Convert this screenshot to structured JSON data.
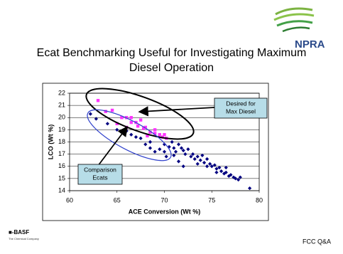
{
  "header": {
    "logo": "NPRA"
  },
  "chart_data": {
    "type": "scatter",
    "title": "Ecat Benchmarking Useful for Investigating Maximum Diesel Operation",
    "x_label": "ACE Conversion (Wt %)",
    "y_label": "LCO (Wt %)",
    "xlim": [
      60,
      80
    ],
    "xticks": [
      60,
      65,
      70,
      75,
      80
    ],
    "ylim": [
      14,
      22
    ],
    "yticks": [
      14,
      15,
      16,
      17,
      18,
      19,
      20,
      21,
      22
    ],
    "grid": true,
    "series": [
      {
        "color": "#ff33ff",
        "marker": "square",
        "x": [
          63.0,
          63.8,
          64.5,
          65.5,
          66.0,
          66.5,
          67.0,
          67.5,
          67.2,
          68.0,
          68.5,
          69.0,
          69.5,
          70.0,
          69.0,
          66.5,
          68.2,
          70.2,
          69.8,
          67.8,
          66.0,
          65.0
        ],
        "values": [
          21.4,
          20.5,
          20.6,
          20.0,
          20.0,
          20.0,
          19.6,
          19.8,
          19.3,
          19.2,
          18.8,
          18.7,
          18.6,
          18.6,
          19.0,
          19.6,
          18.5,
          18.3,
          18.4,
          19.1,
          19.2,
          19.5
        ]
      },
      {
        "color": "#000080",
        "marker": "diamond",
        "x": [
          62.2,
          62.8,
          64.0,
          65.0,
          65.5,
          66.0,
          66.5,
          67.0,
          67.5,
          68.0,
          68.5,
          69.0,
          70.0,
          70.5,
          70.8,
          71.0,
          71.2,
          71.5,
          71.8,
          72.0,
          72.2,
          72.5,
          72.8,
          73.0,
          73.2,
          73.5,
          73.8,
          74.0,
          74.2,
          74.5,
          74.8,
          75.0,
          75.3,
          75.5,
          75.8,
          76.0,
          76.3,
          76.5,
          76.8,
          77.0,
          77.3,
          77.5,
          77.8,
          78.0,
          79.0,
          70.2,
          71.5,
          72.0,
          74.5,
          73.5,
          70.0,
          69.5,
          68.5,
          71.0,
          75.5,
          76.5
        ],
        "values": [
          20.3,
          19.9,
          19.5,
          19.0,
          18.8,
          18.9,
          18.6,
          18.4,
          18.3,
          17.8,
          17.5,
          17.2,
          17.8,
          17.6,
          18.0,
          17.5,
          17.2,
          17.8,
          17.5,
          17.3,
          17.0,
          17.4,
          16.8,
          17.0,
          16.6,
          16.8,
          16.5,
          16.9,
          16.3,
          16.6,
          16.2,
          16.0,
          16.1,
          15.8,
          15.9,
          15.6,
          15.4,
          15.5,
          15.2,
          15.3,
          15.1,
          15.0,
          14.9,
          15.1,
          14.2,
          16.8,
          16.4,
          16.0,
          16.0,
          16.2,
          17.2,
          17.4,
          18.0,
          16.9,
          15.5,
          15.9
        ]
      }
    ],
    "annotations": [
      {
        "lines": [
          "Desired for",
          "Max Diesel"
        ]
      },
      {
        "lines": [
          "Comparison",
          "Ecats"
        ]
      }
    ]
  },
  "footer": {
    "company": "BASF",
    "tagline": "The Chemical Company",
    "label": "FCC Q&A"
  }
}
